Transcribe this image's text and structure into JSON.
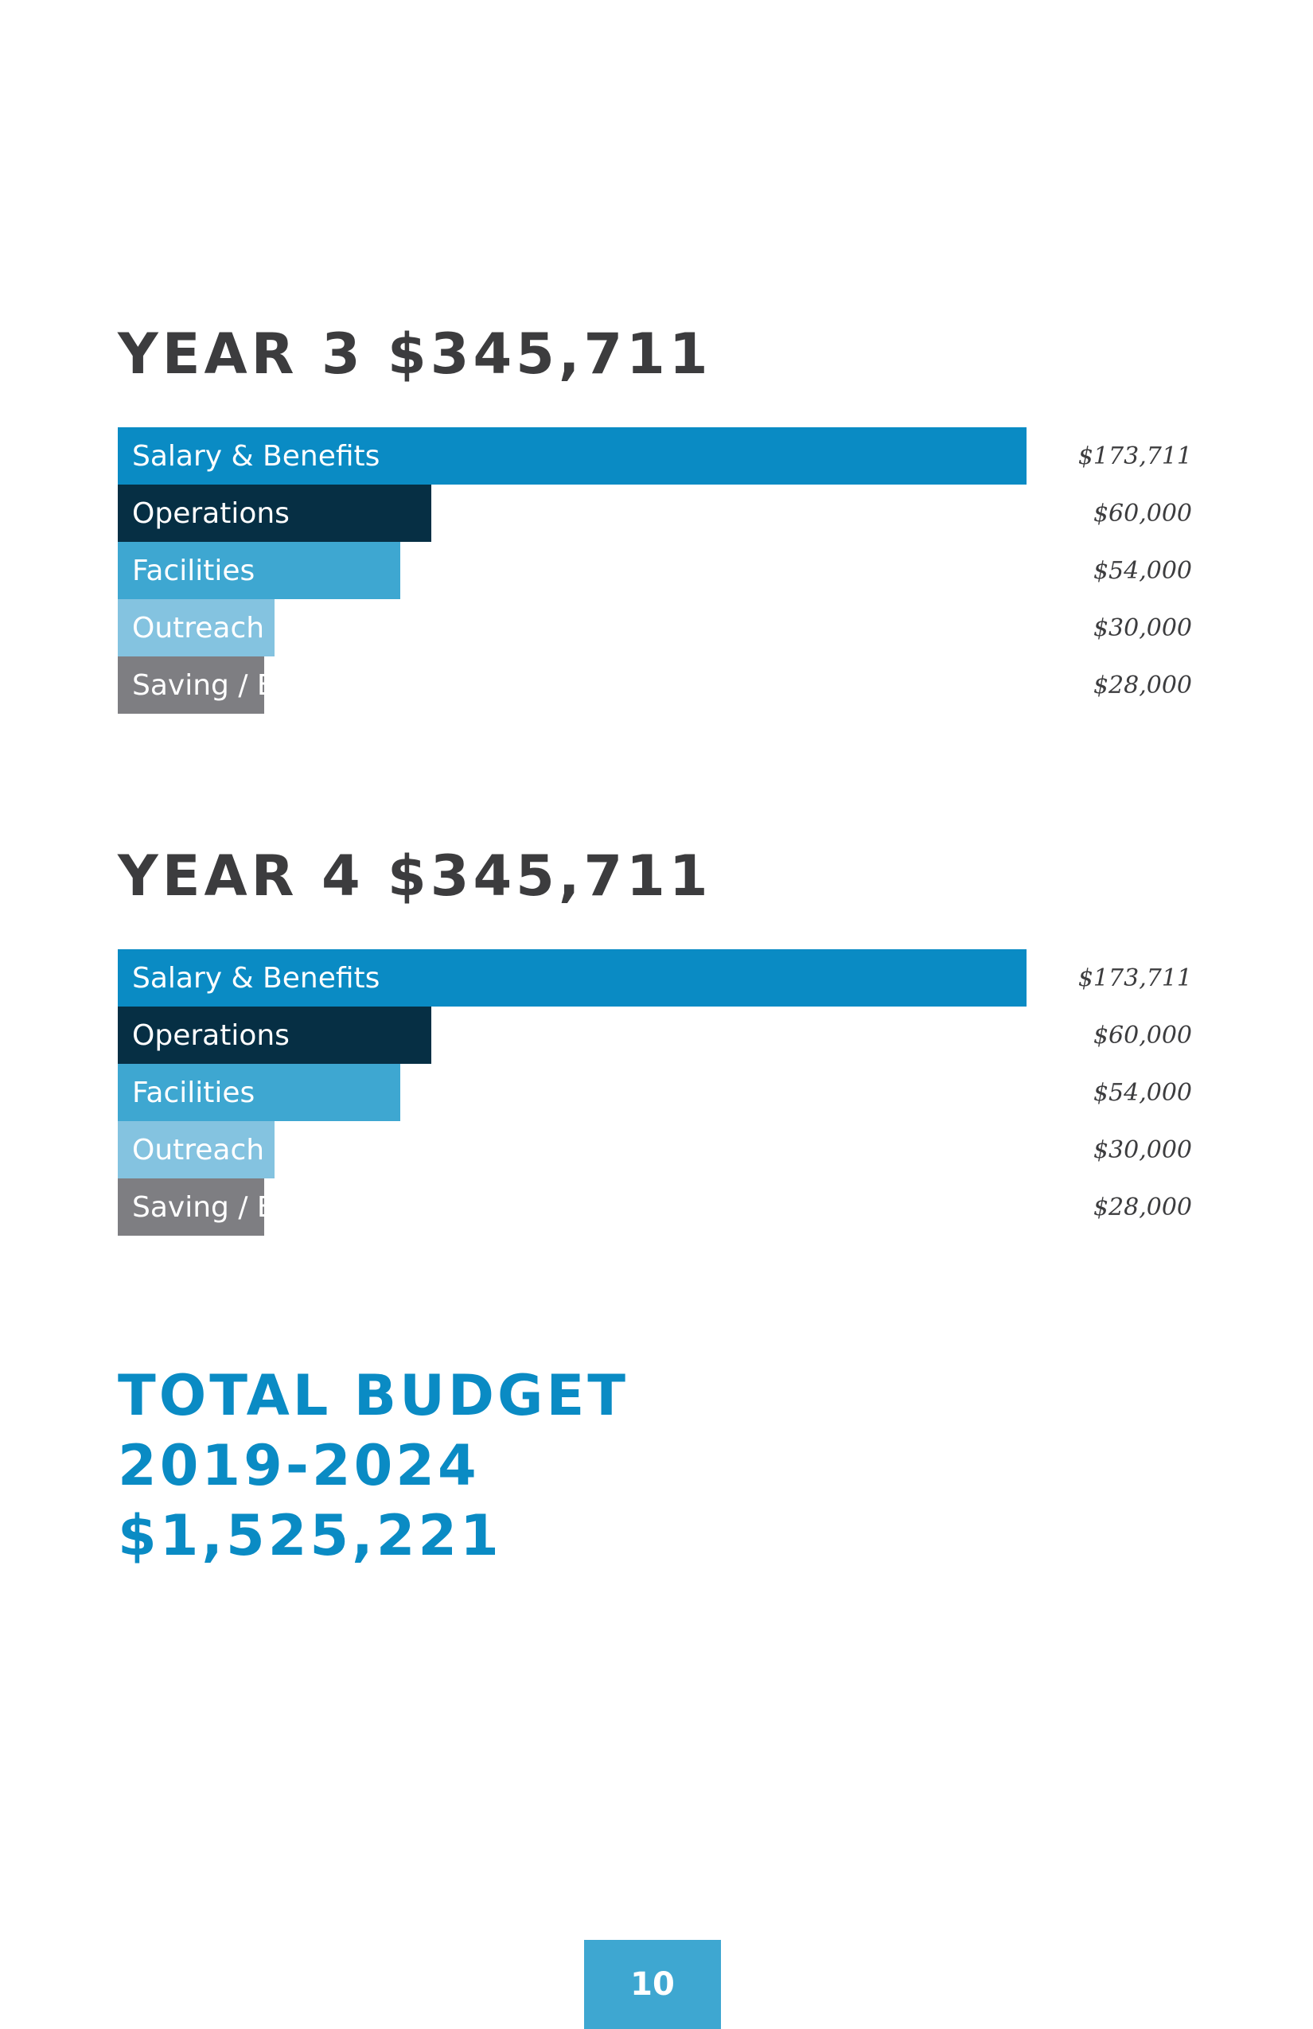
{
  "colors": {
    "salary": "#0a8bc4",
    "operations": "#062f44",
    "facilities": "#3ea7d1",
    "outreach": "#84c3e0",
    "saving": "#7e7e82",
    "total_text": "#0a8bc4",
    "page_box": "#3ea7d1"
  },
  "chart_data": [
    {
      "type": "bar",
      "orientation": "horizontal",
      "title": "YEAR 3 $345,711",
      "categories": [
        "Salary & Benefits",
        "Operations",
        "Facilities",
        "Outreach",
        "Saving / Expansion"
      ],
      "values": [
        173711,
        60000,
        54000,
        30000,
        28000
      ],
      "value_labels": [
        "$173,711",
        "$60,000",
        "$54,000",
        "$30,000",
        "$28,000"
      ],
      "color_keys": [
        "salary",
        "operations",
        "facilities",
        "outreach",
        "saving"
      ]
    },
    {
      "type": "bar",
      "orientation": "horizontal",
      "title": "YEAR 4 $345,711",
      "categories": [
        "Salary & Benefits",
        "Operations",
        "Facilities",
        "Outreach",
        "Saving / Expansion"
      ],
      "values": [
        173711,
        60000,
        54000,
        30000,
        28000
      ],
      "value_labels": [
        "$173,711",
        "$60,000",
        "$54,000",
        "$30,000",
        "$28,000"
      ],
      "color_keys": [
        "salary",
        "operations",
        "facilities",
        "outreach",
        "saving"
      ]
    }
  ],
  "total": {
    "line1": "TOTAL BUDGET",
    "line2": "2019-2024",
    "line3": "$1,525,221"
  },
  "page_number": "10"
}
